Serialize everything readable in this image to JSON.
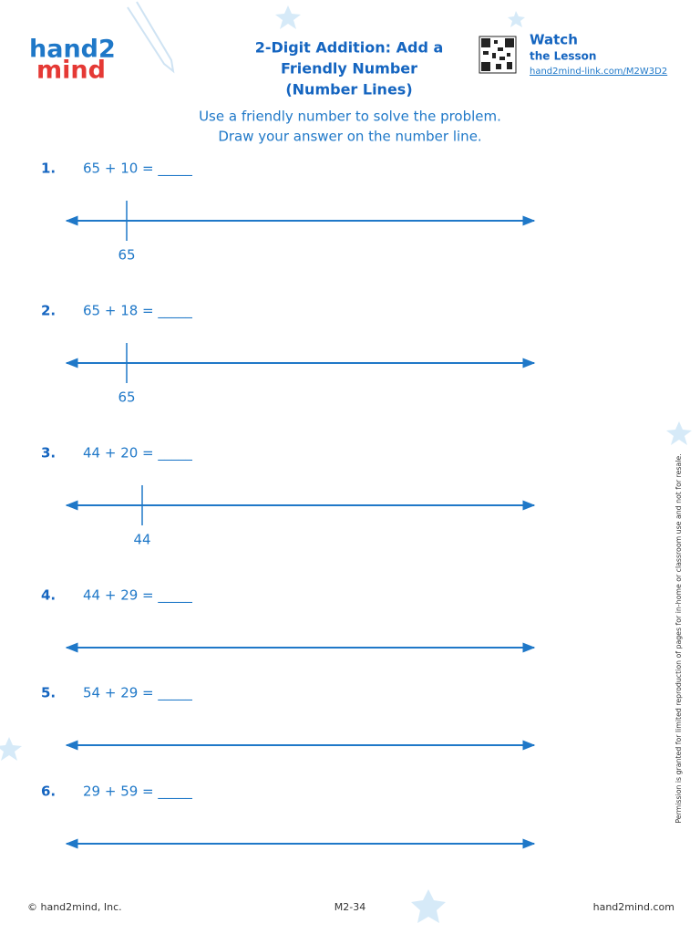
{
  "logo": {
    "line1": "hand2",
    "line2": "mind"
  },
  "title": [
    "2-Digit Addition: Add a",
    "Friendly Number",
    "(Number Lines)"
  ],
  "watch": {
    "heading": "Watch",
    "subheading": "the Lesson",
    "link": "hand2mind-link.com/M2W3D2"
  },
  "instructions": [
    "Use a friendly number to solve the problem.",
    "Draw your answer on the number line."
  ],
  "problems": [
    {
      "number": "1.",
      "expression": "65 + 10 = _____",
      "start": 65
    },
    {
      "number": "2.",
      "expression": "65 + 18 = _____",
      "start": 65
    },
    {
      "number": "3.",
      "expression": "44 + 20 = _____",
      "start": 44
    },
    {
      "number": "4.",
      "expression": "44 + 29 = _____"
    },
    {
      "number": "5.",
      "expression": "54 + 29 = _____"
    },
    {
      "number": "6.",
      "expression": "29 + 59 = _____"
    }
  ],
  "side_note": "Permission is granted for limited reproduction of pages for in-home or classroom use and not for resale.",
  "footer": {
    "copyright": "© hand2mind, Inc.",
    "page": "M2-34",
    "website": "hand2mind.com"
  }
}
